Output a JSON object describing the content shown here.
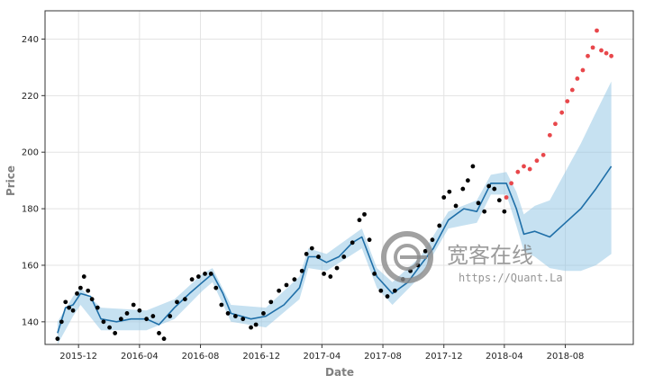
{
  "chart_data": {
    "type": "scatter",
    "title": "",
    "xlabel": "Date",
    "ylabel": "Price",
    "xlim": [
      "2015-09-25",
      "2018-12-15"
    ],
    "ylim": [
      132,
      250
    ],
    "grid": true,
    "x_ticks": [
      "2015-12",
      "2016-04",
      "2016-08",
      "2016-12",
      "2017-04",
      "2017-08",
      "2017-12",
      "2018-04",
      "2018-08"
    ],
    "y_ticks": [
      140,
      160,
      180,
      200,
      220,
      240
    ],
    "colors": {
      "observed": "#000000",
      "actual_future": "#e8474b",
      "forecast_line": "#1f6fa8",
      "interval": "#8ec4e4"
    },
    "series": [
      {
        "role": "forecast_line",
        "points": [
          [
            "2015-10-20",
            136
          ],
          [
            "2015-11-05",
            145
          ],
          [
            "2015-11-20",
            146
          ],
          [
            "2015-12-05",
            150
          ],
          [
            "2015-12-25",
            149
          ],
          [
            "2016-01-15",
            141
          ],
          [
            "2016-02-15",
            140
          ],
          [
            "2016-03-15",
            141
          ],
          [
            "2016-04-15",
            141
          ],
          [
            "2016-05-10",
            139
          ],
          [
            "2016-06-10",
            145
          ],
          [
            "2016-07-10",
            150
          ],
          [
            "2016-08-05",
            154
          ],
          [
            "2016-08-25",
            157
          ],
          [
            "2016-09-15",
            150
          ],
          [
            "2016-10-01",
            143
          ],
          [
            "2016-11-10",
            141
          ],
          [
            "2016-12-10",
            142
          ],
          [
            "2017-01-15",
            146
          ],
          [
            "2017-02-15",
            152
          ],
          [
            "2017-03-05",
            163
          ],
          [
            "2017-03-20",
            163
          ],
          [
            "2017-04-10",
            161
          ],
          [
            "2017-05-05",
            163
          ],
          [
            "2017-06-01",
            168
          ],
          [
            "2017-06-20",
            170
          ],
          [
            "2017-07-20",
            156
          ],
          [
            "2017-08-20",
            150
          ],
          [
            "2017-09-20",
            154
          ],
          [
            "2017-10-15",
            160
          ],
          [
            "2017-11-10",
            166
          ],
          [
            "2017-12-10",
            176
          ],
          [
            "2018-01-10",
            180
          ],
          [
            "2018-02-05",
            179
          ],
          [
            "2018-03-05",
            189
          ],
          [
            "2018-04-05",
            189
          ],
          [
            "2018-04-25",
            180
          ],
          [
            "2018-05-10",
            171
          ],
          [
            "2018-06-01",
            172
          ],
          [
            "2018-07-01",
            170
          ],
          [
            "2018-08-01",
            175
          ],
          [
            "2018-09-01",
            180
          ],
          [
            "2018-10-01",
            187
          ],
          [
            "2018-11-01",
            195
          ]
        ]
      },
      {
        "role": "interval_upper",
        "points": [
          [
            "2015-10-20",
            140
          ],
          [
            "2015-11-20",
            149
          ],
          [
            "2015-12-05",
            152
          ],
          [
            "2016-01-15",
            145
          ],
          [
            "2016-04-15",
            144
          ],
          [
            "2016-06-10",
            148
          ],
          [
            "2016-08-05",
            157
          ],
          [
            "2016-08-25",
            159
          ],
          [
            "2016-10-01",
            146
          ],
          [
            "2016-12-10",
            145
          ],
          [
            "2017-02-15",
            156
          ],
          [
            "2017-03-05",
            166
          ],
          [
            "2017-04-10",
            164
          ],
          [
            "2017-06-20",
            173
          ],
          [
            "2017-07-20",
            159
          ],
          [
            "2017-08-20",
            154
          ],
          [
            "2017-10-15",
            163
          ],
          [
            "2017-12-10",
            179
          ],
          [
            "2018-02-05",
            183
          ],
          [
            "2018-03-05",
            192
          ],
          [
            "2018-04-05",
            193
          ],
          [
            "2018-04-25",
            186
          ],
          [
            "2018-05-10",
            178
          ],
          [
            "2018-06-01",
            181
          ],
          [
            "2018-07-01",
            183
          ],
          [
            "2018-08-01",
            193
          ],
          [
            "2018-09-01",
            203
          ],
          [
            "2018-10-01",
            214
          ],
          [
            "2018-11-01",
            225
          ]
        ]
      },
      {
        "role": "interval_lower",
        "points": [
          [
            "2015-10-20",
            132
          ],
          [
            "2015-11-20",
            142
          ],
          [
            "2015-12-05",
            146
          ],
          [
            "2016-01-15",
            137
          ],
          [
            "2016-04-15",
            137
          ],
          [
            "2016-06-10",
            141
          ],
          [
            "2016-08-05",
            151
          ],
          [
            "2016-08-25",
            154
          ],
          [
            "2016-10-01",
            140
          ],
          [
            "2016-12-10",
            138
          ],
          [
            "2017-02-15",
            148
          ],
          [
            "2017-03-05",
            159
          ],
          [
            "2017-04-10",
            158
          ],
          [
            "2017-06-20",
            166
          ],
          [
            "2017-07-20",
            152
          ],
          [
            "2017-08-20",
            146
          ],
          [
            "2017-10-15",
            156
          ],
          [
            "2017-12-10",
            173
          ],
          [
            "2018-02-05",
            175
          ],
          [
            "2018-03-05",
            185
          ],
          [
            "2018-04-05",
            185
          ],
          [
            "2018-04-25",
            174
          ],
          [
            "2018-05-10",
            165
          ],
          [
            "2018-06-01",
            163
          ],
          [
            "2018-07-01",
            159
          ],
          [
            "2018-08-01",
            158
          ],
          [
            "2018-09-01",
            158
          ],
          [
            "2018-10-01",
            160
          ],
          [
            "2018-11-01",
            164
          ]
        ]
      },
      {
        "role": "observed",
        "points": [
          [
            "2015-10-20",
            134
          ],
          [
            "2015-10-28",
            140
          ],
          [
            "2015-11-05",
            147
          ],
          [
            "2015-11-12",
            145
          ],
          [
            "2015-11-20",
            144
          ],
          [
            "2015-11-28",
            150
          ],
          [
            "2015-12-05",
            152
          ],
          [
            "2015-12-12",
            156
          ],
          [
            "2015-12-20",
            151
          ],
          [
            "2015-12-28",
            148
          ],
          [
            "2016-01-08",
            145
          ],
          [
            "2016-01-20",
            140
          ],
          [
            "2016-02-01",
            138
          ],
          [
            "2016-02-12",
            136
          ],
          [
            "2016-02-24",
            141
          ],
          [
            "2016-03-07",
            143
          ],
          [
            "2016-03-20",
            146
          ],
          [
            "2016-04-01",
            144
          ],
          [
            "2016-04-15",
            141
          ],
          [
            "2016-04-28",
            142
          ],
          [
            "2016-05-10",
            136
          ],
          [
            "2016-05-20",
            134
          ],
          [
            "2016-06-01",
            142
          ],
          [
            "2016-06-15",
            147
          ],
          [
            "2016-07-01",
            148
          ],
          [
            "2016-07-15",
            155
          ],
          [
            "2016-07-28",
            156
          ],
          [
            "2016-08-10",
            157
          ],
          [
            "2016-08-22",
            157
          ],
          [
            "2016-09-01",
            152
          ],
          [
            "2016-09-12",
            146
          ],
          [
            "2016-09-25",
            143
          ],
          [
            "2016-10-10",
            142
          ],
          [
            "2016-10-25",
            141
          ],
          [
            "2016-11-10",
            138
          ],
          [
            "2016-11-20",
            139
          ],
          [
            "2016-12-05",
            143
          ],
          [
            "2016-12-20",
            147
          ],
          [
            "2017-01-05",
            151
          ],
          [
            "2017-01-20",
            153
          ],
          [
            "2017-02-05",
            155
          ],
          [
            "2017-02-20",
            158
          ],
          [
            "2017-03-01",
            164
          ],
          [
            "2017-03-12",
            166
          ],
          [
            "2017-03-25",
            163
          ],
          [
            "2017-04-05",
            157
          ],
          [
            "2017-04-18",
            156
          ],
          [
            "2017-05-01",
            159
          ],
          [
            "2017-05-15",
            163
          ],
          [
            "2017-06-01",
            168
          ],
          [
            "2017-06-15",
            176
          ],
          [
            "2017-06-25",
            178
          ],
          [
            "2017-07-05",
            169
          ],
          [
            "2017-07-15",
            157
          ],
          [
            "2017-07-28",
            151
          ],
          [
            "2017-08-10",
            149
          ],
          [
            "2017-08-25",
            151
          ],
          [
            "2017-09-10",
            155
          ],
          [
            "2017-09-25",
            158
          ],
          [
            "2017-10-10",
            160
          ],
          [
            "2017-10-25",
            165
          ],
          [
            "2017-11-08",
            169
          ],
          [
            "2017-11-22",
            174
          ],
          [
            "2017-12-01",
            184
          ],
          [
            "2017-12-12",
            186
          ],
          [
            "2017-12-25",
            181
          ],
          [
            "2018-01-08",
            187
          ],
          [
            "2018-01-18",
            190
          ],
          [
            "2018-01-28",
            195
          ],
          [
            "2018-02-08",
            182
          ],
          [
            "2018-02-20",
            179
          ],
          [
            "2018-03-01",
            188
          ],
          [
            "2018-03-12",
            187
          ],
          [
            "2018-03-22",
            183
          ],
          [
            "2018-04-01",
            179
          ]
        ]
      },
      {
        "role": "actual_future",
        "points": [
          [
            "2018-04-05",
            184
          ],
          [
            "2018-04-15",
            189
          ],
          [
            "2018-04-28",
            193
          ],
          [
            "2018-05-10",
            195
          ],
          [
            "2018-05-22",
            194
          ],
          [
            "2018-06-05",
            197
          ],
          [
            "2018-06-18",
            199
          ],
          [
            "2018-07-01",
            206
          ],
          [
            "2018-07-12",
            210
          ],
          [
            "2018-07-25",
            214
          ],
          [
            "2018-08-05",
            218
          ],
          [
            "2018-08-15",
            222
          ],
          [
            "2018-08-25",
            226
          ],
          [
            "2018-09-05",
            229
          ],
          [
            "2018-09-15",
            234
          ],
          [
            "2018-09-25",
            237
          ],
          [
            "2018-10-03",
            243
          ],
          [
            "2018-10-12",
            236
          ],
          [
            "2018-10-22",
            235
          ],
          [
            "2018-11-01",
            234
          ]
        ]
      }
    ]
  },
  "watermark": {
    "name_cn": "宽客在线",
    "url": "https://Quant.La"
  }
}
